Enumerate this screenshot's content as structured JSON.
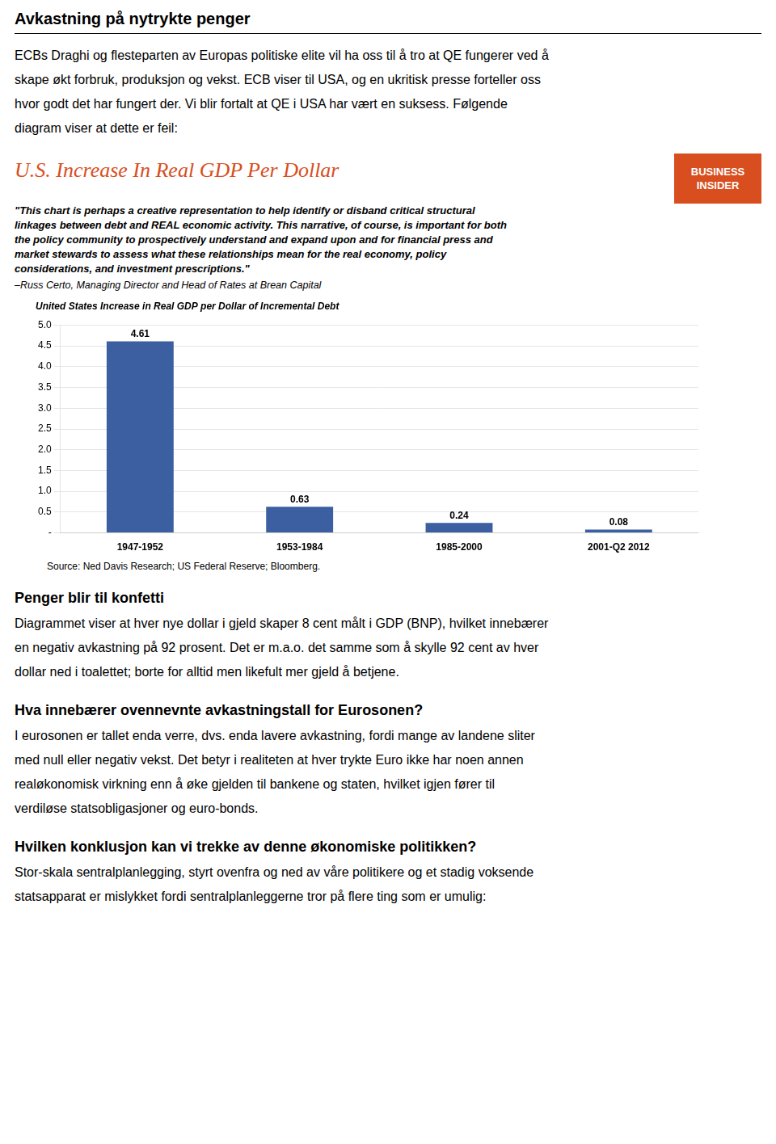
{
  "title": "Avkastning på nytrykte penger",
  "intro": [
    "ECBs Draghi og flesteparten av Europas politiske elite vil ha oss til å tro at QE fungerer ved å",
    "skape økt forbruk, produksjon og vekst. ECB viser til USA, og en ukritisk presse forteller oss",
    "hvor godt det har fungert der. Vi blir fortalt at QE i USA har vært en suksess. Følgende",
    "diagram viser at dette er feil:"
  ],
  "heading": {
    "text": "U.S. Increase In Real GDP Per Dollar",
    "color": "#D84E1E"
  },
  "logo": {
    "text": [
      "BUSINESS",
      "INSIDER"
    ],
    "color": "#D84E1E"
  },
  "quote": [
    "\"This chart is perhaps a creative representation to help identify or disband critical structural",
    "linkages between debt and REAL economic activity. This narrative, of course, is important for both",
    "the policy community to prospectively understand and expand upon and for financial press and",
    "market stewards to assess what these relationships mean for the real economy, policy",
    "considerations, and investment prescriptions.\""
  ],
  "quote_author": "–Russ Certo, Managing Director and Head of Rates at Brean Capital",
  "chart_data": {
    "type": "bar",
    "title": "United States Increase in Real GDP per Dollar of Incremental Debt",
    "categories": [
      "1947-1952",
      "1953-1984",
      "1985-2000",
      "2001-Q2 2012"
    ],
    "values": [
      4.61,
      0.63,
      0.24,
      0.08
    ],
    "color": "#3B5FA0",
    "ylim": [
      0,
      5.0
    ],
    "yticks": [
      {
        "value": 0,
        "label": "-"
      },
      0.5,
      {
        "value": 1,
        "label": "1.0"
      },
      1.5,
      {
        "value": 2,
        "label": "2.0"
      },
      2.5,
      {
        "value": 3,
        "label": "3.0"
      },
      3.5,
      {
        "value": 4,
        "label": "4.0"
      },
      4.5,
      {
        "value": 5,
        "label": "5.0"
      }
    ],
    "grid": true,
    "data_labels": true
  },
  "source": "Source: Ned Davis Research; US Federal Reserve; Bloomberg.",
  "sections": [
    {
      "heading": "Penger blir til konfetti",
      "text": [
        "Diagrammet viser at hver nye dollar i gjeld skaper 8 cent målt i GDP (BNP), hvilket innebærer",
        "en negativ avkastning på 92 prosent. Det er m.a.o. det samme som å skylle 92 cent av hver",
        "dollar ned i toalettet; borte for alltid men likefult mer gjeld å betjene."
      ]
    },
    {
      "heading": "Hva innebærer ovennevnte avkastningstall for Eurosonen?",
      "text": [
        "I eurosonen er tallet enda verre, dvs. enda lavere avkastning, fordi mange av landene sliter",
        "med null eller negativ vekst. Det betyr i realiteten at hver trykte Euro ikke har noen annen",
        "realøkonomisk virkning enn å øke gjelden til bankene og staten, hvilket igjen fører til",
        "verdiløse statsobligasjoner og euro-bonds."
      ]
    },
    {
      "heading": "Hvilken konklusjon kan vi trekke av denne økonomiske politikken?",
      "text": [
        "Stor-skala sentralplanlegging, styrt ovenfra og ned av våre politikere og et stadig voksende",
        "statsapparat er mislykket fordi sentralplanleggerne tror på flere ting som er umulig:"
      ]
    }
  ]
}
